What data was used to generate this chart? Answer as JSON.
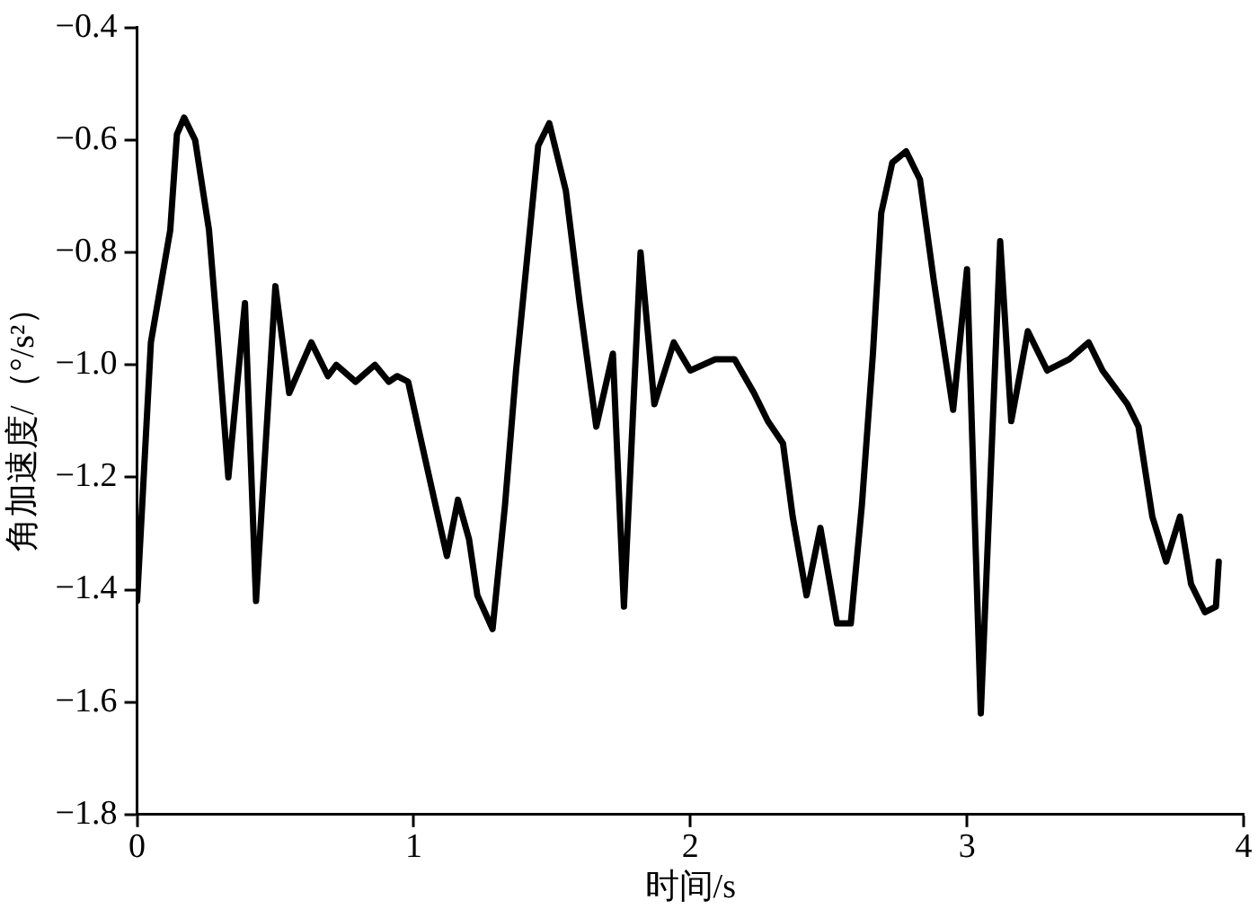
{
  "chart_data": {
    "type": "line",
    "xlabel": "时间/s",
    "ylabel": "角加速度/（°/s²）",
    "x": [
      0,
      0.05,
      0.12,
      0.144,
      0.17,
      0.21,
      0.26,
      0.29,
      0.33,
      0.39,
      0.43,
      0.5,
      0.55,
      0.63,
      0.69,
      0.72,
      0.79,
      0.86,
      0.91,
      0.94,
      0.98,
      1.02,
      1.07,
      1.12,
      1.16,
      1.2,
      1.23,
      1.285,
      1.33,
      1.37,
      1.42,
      1.45,
      1.49,
      1.55,
      1.6,
      1.66,
      1.72,
      1.76,
      1.82,
      1.87,
      1.94,
      2.0,
      2.09,
      2.16,
      2.23,
      2.28,
      2.335,
      2.37,
      2.42,
      2.47,
      2.53,
      2.58,
      2.62,
      2.66,
      2.69,
      2.73,
      2.78,
      2.83,
      2.88,
      2.95,
      3.0,
      3.05,
      3.12,
      3.16,
      3.22,
      3.29,
      3.37,
      3.44,
      3.49,
      3.58,
      3.62,
      3.67,
      3.72,
      3.77,
      3.81,
      3.86,
      3.9,
      3.91
    ],
    "series": [
      {
        "color": "#000000",
        "values": [
          -1.42,
          -0.96,
          -0.76,
          -0.59,
          -0.56,
          -0.6,
          -0.76,
          -0.94,
          -1.2,
          -0.89,
          -1.42,
          -0.86,
          -1.05,
          -0.96,
          -1.02,
          -1.0,
          -1.03,
          -1.0,
          -1.03,
          -1.02,
          -1.03,
          -1.12,
          -1.23,
          -1.34,
          -1.24,
          -1.31,
          -1.41,
          -1.47,
          -1.25,
          -1.01,
          -0.76,
          -0.61,
          -0.57,
          -0.69,
          -0.89,
          -1.11,
          -0.98,
          -1.43,
          -0.8,
          -1.07,
          -0.96,
          -1.01,
          -0.99,
          -0.99,
          -1.05,
          -1.1,
          -1.14,
          -1.27,
          -1.41,
          -1.29,
          -1.46,
          -1.46,
          -1.25,
          -0.98,
          -0.73,
          -0.64,
          -0.62,
          -0.67,
          -0.85,
          -1.08,
          -0.83,
          -1.62,
          -0.78,
          -1.1,
          -0.94,
          -1.01,
          -0.99,
          -0.96,
          -1.01,
          -1.07,
          -1.11,
          -1.27,
          -1.35,
          -1.27,
          -1.39,
          -1.44,
          -1.43,
          -1.35
        ]
      }
    ],
    "xlim": [
      0,
      4
    ],
    "xticks": [
      0,
      1,
      2,
      3,
      4
    ],
    "ylim": [
      -1.8,
      -0.4
    ],
    "yticks": [
      {
        "value": -1.8,
        "label": "−1.8"
      },
      {
        "value": -1.6,
        "label": "−1.6"
      },
      {
        "value": -1.4,
        "label": "−1.4"
      },
      {
        "value": -1.2,
        "label": "−1.2"
      },
      {
        "value": -1.0,
        "label": "−1.0"
      },
      {
        "value": -0.8,
        "label": "−0.8"
      },
      {
        "value": -0.6,
        "label": "−0.6"
      },
      {
        "value": -0.4,
        "label": "−0.4"
      }
    ],
    "grid": false,
    "legend": false,
    "marker": "none",
    "line_style": "solid"
  }
}
